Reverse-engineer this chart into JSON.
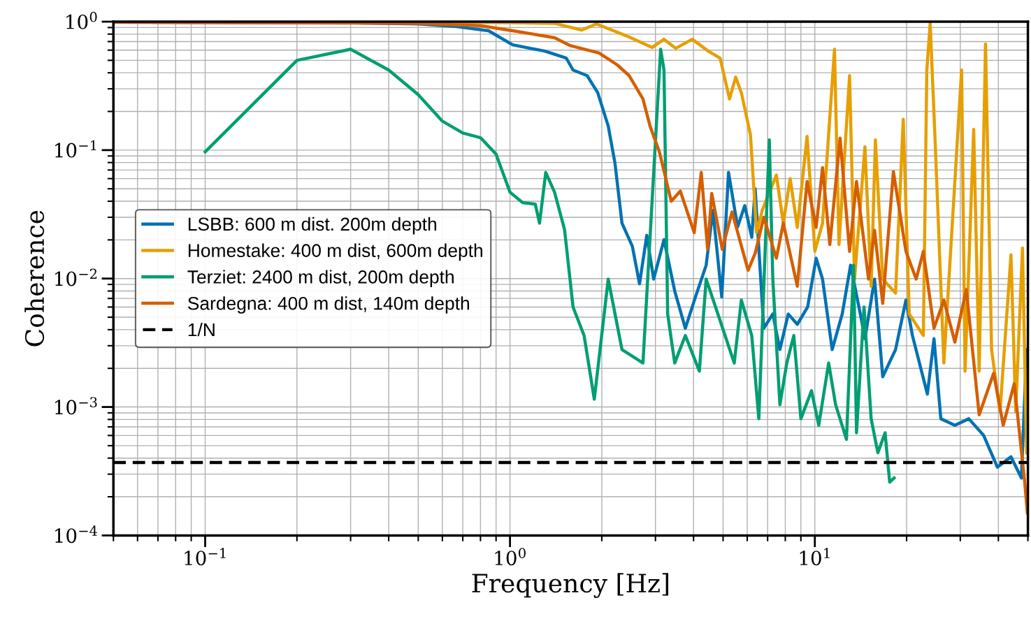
{
  "chart_data": {
    "type": "line",
    "xlabel": "Frequency [Hz]",
    "ylabel": "Coherence",
    "log": "xy",
    "grid": true,
    "legend": "center left",
    "xlim": [
      0.05,
      50
    ],
    "ylim": [
      0.0001,
      1
    ],
    "xticks": [
      {
        "value": 0.1,
        "label": "10$^{−1}$"
      },
      {
        "value": 1,
        "label": "10$^{0}$"
      },
      {
        "value": 10,
        "label": "10$^{1}$"
      }
    ],
    "yticks": [
      {
        "value": 0.0001,
        "label": "10$^{−4}$"
      },
      {
        "value": 0.001,
        "label": "10$^{−3}$"
      },
      {
        "value": 0.01,
        "label": "10$^{−2}$"
      },
      {
        "value": 0.1,
        "label": "10$^{−1}$"
      },
      {
        "value": 1,
        "label": "10$^{0}$"
      }
    ],
    "series": [
      {
        "name": "LSBB: 600 m dist. 200m depth",
        "color": "#0072b2",
        "x": [
          0.05,
          0.3,
          0.5,
          0.655,
          0.85,
          1.02,
          1.3,
          1.53,
          1.61,
          1.79,
          1.94,
          2.1,
          2.21,
          2.33,
          2.52,
          2.66,
          2.81,
          2.96,
          3.2,
          3.47,
          3.76,
          4.06,
          4.4,
          4.63,
          4.95,
          5.21,
          5.58,
          5.89,
          6.21,
          6.37,
          6.8,
          7.28,
          7.68,
          8.18,
          8.76,
          9.47,
          10.1,
          10.6,
          11.4,
          12.3,
          13.1,
          14.1,
          14.6,
          15.7,
          16.7,
          18.4,
          19.9,
          20.9,
          23.4,
          24.6,
          25.9,
          28.8,
          32.0,
          35.8,
          39.7,
          44.0,
          47.6,
          49.5
        ],
        "values": [
          0.99,
          0.98,
          0.96,
          0.92,
          0.85,
          0.66,
          0.59,
          0.52,
          0.42,
          0.38,
          0.28,
          0.154,
          0.079,
          0.027,
          0.0178,
          0.0091,
          0.0217,
          0.0099,
          0.0201,
          0.008,
          0.0041,
          0.0072,
          0.0127,
          0.034,
          0.0072,
          0.067,
          0.0252,
          0.037,
          0.0209,
          0.05,
          0.0041,
          0.0053,
          0.0028,
          0.0053,
          0.0044,
          0.006,
          0.0144,
          0.0099,
          0.0028,
          0.0053,
          0.0127,
          0.0053,
          0.0034,
          0.0099,
          0.00172,
          0.0028,
          0.0068,
          0.0036,
          0.00126,
          0.0034,
          0.00081,
          0.00072,
          0.00081,
          0.0006,
          0.00034,
          0.00041,
          0.00028,
          0.0028
        ]
      },
      {
        "name": "Homestake: 400 m dist, 600m depth",
        "color": "#e69f00",
        "x": [
          0.05,
          0.5,
          1.0,
          1.4,
          1.72,
          1.92,
          2.46,
          2.93,
          3.2,
          3.5,
          3.96,
          4.47,
          4.89,
          5.25,
          5.5,
          5.74,
          6.15,
          6.44,
          6.72,
          7.48,
          7.88,
          8.3,
          8.76,
          9.43,
          10.0,
          10.6,
          11.6,
          12.0,
          13.0,
          13.5,
          14.6,
          15.3,
          15.8,
          16.7,
          18.4,
          19.5,
          20.4,
          22.7,
          23.3,
          23.9,
          24.8,
          26.5,
          30.3,
          31.1,
          33.2,
          34.6,
          36.3,
          38.0,
          40.5,
          44.0,
          45.6,
          48.0,
          49.5
        ],
        "values": [
          1.0,
          1.0,
          0.98,
          0.97,
          0.86,
          0.96,
          0.76,
          0.63,
          0.73,
          0.62,
          0.73,
          0.59,
          0.52,
          0.25,
          0.37,
          0.28,
          0.131,
          0.0228,
          0.034,
          0.064,
          0.027,
          0.06,
          0.025,
          0.128,
          0.0163,
          0.027,
          0.61,
          0.0184,
          0.38,
          0.0099,
          0.106,
          0.0087,
          0.12,
          0.0099,
          0.0077,
          0.174,
          0.0053,
          0.0036,
          0.42,
          0.975,
          0.12,
          0.0022,
          0.42,
          0.0019,
          0.145,
          0.0019,
          0.67,
          0.0028,
          0.00092,
          0.0153,
          0.00092,
          0.0173,
          0.00044
        ]
      },
      {
        "name": "Terziet: 2400 m dist, 200m depth",
        "color": "#009e73",
        "x": [
          0.1,
          0.2,
          0.3,
          0.4,
          0.5,
          0.6,
          0.7,
          0.8,
          0.9,
          1.0,
          1.1,
          1.21,
          1.25,
          1.31,
          1.4,
          1.51,
          1.61,
          1.75,
          1.89,
          2.1,
          2.33,
          2.73,
          3.12,
          3.2,
          3.29,
          3.47,
          3.76,
          4.18,
          4.4,
          4.89,
          5.44,
          5.74,
          6.21,
          6.55,
          7.09,
          7.28,
          7.68,
          8.09,
          8.53,
          9.0,
          9.75,
          10.3,
          11.1,
          11.7,
          12.7,
          13.4,
          13.7,
          14.5,
          15.3,
          16.1,
          17.0,
          17.6,
          18.2
        ],
        "values": [
          0.097,
          0.5,
          0.61,
          0.42,
          0.27,
          0.168,
          0.136,
          0.125,
          0.093,
          0.047,
          0.039,
          0.038,
          0.027,
          0.067,
          0.047,
          0.024,
          0.006,
          0.0036,
          0.00115,
          0.0099,
          0.0028,
          0.0022,
          0.61,
          0.42,
          0.0053,
          0.0022,
          0.0036,
          0.0019,
          0.0099,
          0.0047,
          0.0022,
          0.0068,
          0.0036,
          0.00081,
          0.12,
          0.0099,
          0.00104,
          0.0022,
          0.0036,
          0.00081,
          0.00134,
          0.00072,
          0.0022,
          0.00104,
          0.00056,
          0.0127,
          0.00063,
          0.006,
          0.00081,
          0.00044,
          0.00063,
          0.00026,
          0.00028
        ]
      },
      {
        "name": "Sardegna: 400 m dist, 140m depth",
        "color": "#d55e00",
        "x": [
          0.05,
          0.5,
          0.8,
          1.02,
          1.4,
          1.58,
          1.96,
          2.25,
          2.46,
          2.73,
          2.88,
          3.09,
          3.38,
          3.62,
          4.02,
          4.24,
          4.45,
          4.59,
          4.97,
          5.35,
          6.04,
          6.37,
          6.8,
          7.48,
          7.88,
          8.76,
          9.43,
          10.1,
          10.6,
          11.2,
          12.1,
          13.0,
          13.7,
          15.0,
          15.7,
          16.7,
          18.1,
          19.9,
          21.5,
          22.7,
          24.6,
          26.5,
          28.8,
          31.4,
          34.6,
          38.6,
          41.5,
          45.1,
          48.8,
          49.8
        ],
        "values": [
          0.99,
          0.97,
          0.93,
          0.85,
          0.75,
          0.65,
          0.57,
          0.46,
          0.38,
          0.25,
          0.154,
          0.097,
          0.04,
          0.048,
          0.0228,
          0.067,
          0.0169,
          0.046,
          0.0169,
          0.033,
          0.0116,
          0.0157,
          0.03,
          0.0144,
          0.027,
          0.0087,
          0.057,
          0.025,
          0.073,
          0.0184,
          0.124,
          0.0163,
          0.057,
          0.0099,
          0.0237,
          0.0064,
          0.068,
          0.0163,
          0.0099,
          0.0163,
          0.0041,
          0.0068,
          0.0032,
          0.0082,
          0.00087,
          0.00183,
          0.00072,
          0.00152,
          0.00026,
          0.00015
        ]
      },
      {
        "name": "1/N",
        "color": "#000000",
        "line_style": "dashed",
        "x": [
          0.05,
          50
        ],
        "values": [
          0.00037,
          0.00037
        ]
      }
    ]
  }
}
